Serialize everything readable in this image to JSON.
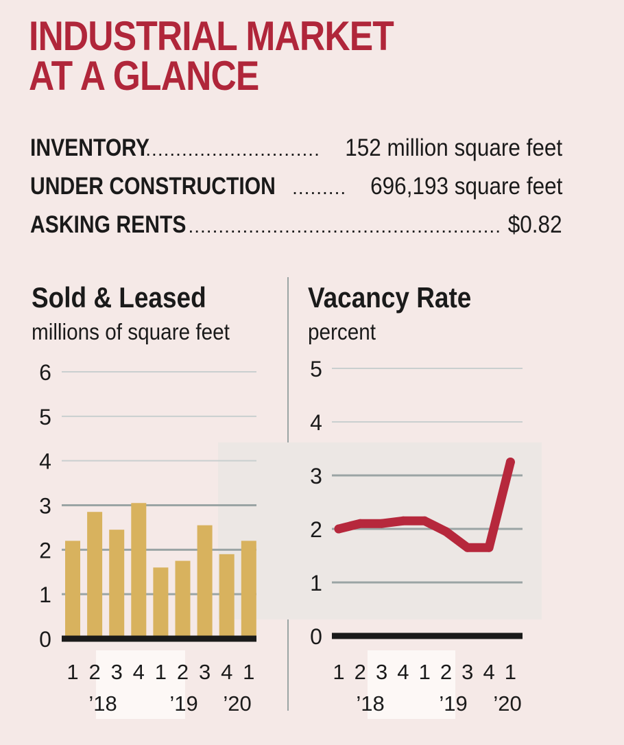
{
  "header": {
    "title_line1": "INDUSTRIAL MARKET",
    "title_line2": "AT A GLANCE"
  },
  "stats": [
    {
      "label": "INVENTORY",
      "value": "152 million square feet"
    },
    {
      "label": "UNDER CONSTRUCTION",
      "value": "696,193 square feet"
    },
    {
      "label": "ASKING RENTS",
      "value": "$0.82"
    }
  ],
  "colors": {
    "title": "#b0263a",
    "bar": "#d8b25e",
    "line": "#b6283c",
    "baseline": "#1a1a1a",
    "grid": "#9aa4a4"
  },
  "chart_data": [
    {
      "type": "bar",
      "title": "Sold & Leased",
      "subtitle": "millions of square feet",
      "quarters": [
        "1",
        "2",
        "3",
        "4",
        "1",
        "2",
        "3",
        "4",
        "1"
      ],
      "years": [
        "’18",
        "’19",
        "’20"
      ],
      "values": [
        2.2,
        2.85,
        2.45,
        3.05,
        1.6,
        1.75,
        2.55,
        1.9,
        2.2
      ],
      "yticks": [
        0,
        1,
        2,
        3,
        4,
        5,
        6
      ],
      "ylim": [
        0,
        6
      ],
      "grid": true
    },
    {
      "type": "line",
      "title": "Vacancy Rate",
      "subtitle": "percent",
      "quarters": [
        "1",
        "2",
        "3",
        "4",
        "1",
        "2",
        "3",
        "4",
        "1"
      ],
      "years": [
        "’18",
        "’19",
        "’20"
      ],
      "values": [
        2.0,
        2.1,
        2.1,
        2.15,
        2.15,
        1.95,
        1.65,
        1.65,
        3.25
      ],
      "yticks": [
        0,
        1,
        2,
        3,
        4,
        5
      ],
      "ylim": [
        0,
        5
      ],
      "grid": true
    }
  ]
}
